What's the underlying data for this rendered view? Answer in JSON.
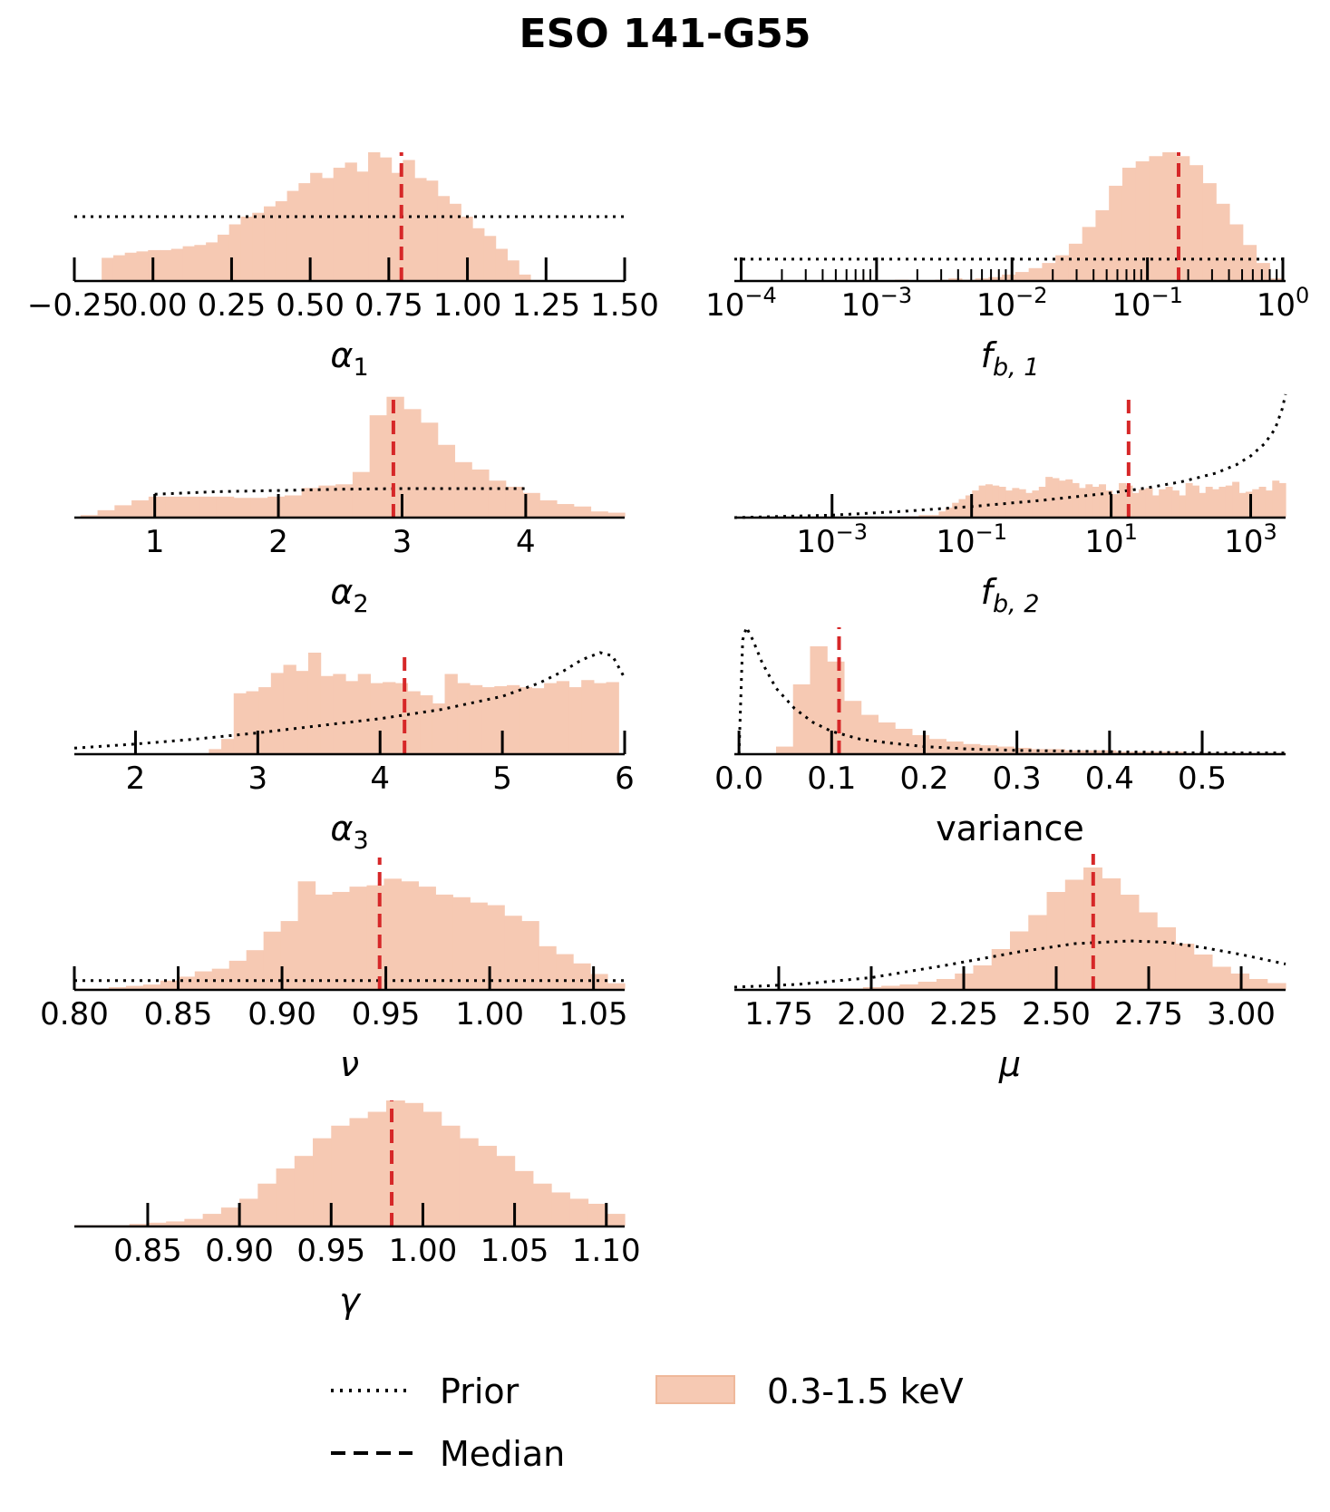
{
  "title": "ESO 141-G55",
  "colors": {
    "hist": "#f6c9b3",
    "median": "#d62728",
    "prior": "#000000",
    "axis": "#000000"
  },
  "legend": {
    "prior_label": "Prior",
    "median_label": "Median",
    "hist_label": "0.3-1.5 keV"
  },
  "chart_data": [
    {
      "type": "histogram",
      "xlabel_sym": "α",
      "xlabel_sub": "1",
      "scale": "linear",
      "xlim": [
        -0.25,
        1.5
      ],
      "ticks": [
        -0.25,
        0.0,
        0.25,
        0.5,
        0.75,
        1.0,
        1.25,
        1.5
      ],
      "tick_labels": [
        "−0.25",
        "0.00",
        "0.25",
        "0.50",
        "0.75",
        "1.00",
        "1.25",
        "1.50"
      ],
      "bins": [
        -0.2,
        1.2
      ],
      "values": [
        0.0,
        0.18,
        0.2,
        0.22,
        0.23,
        0.24,
        0.24,
        0.25,
        0.27,
        0.28,
        0.3,
        0.36,
        0.44,
        0.5,
        0.53,
        0.58,
        0.62,
        0.7,
        0.76,
        0.84,
        0.8,
        0.88,
        0.92,
        0.85,
        1.0,
        0.96,
        0.84,
        0.94,
        0.8,
        0.78,
        0.66,
        0.6,
        0.5,
        0.41,
        0.35,
        0.25,
        0.16,
        0.05
      ],
      "median": 0.79,
      "prior": {
        "kind": "uniform",
        "from": -0.25,
        "to": 1.5,
        "level": 0.5
      }
    },
    {
      "type": "histogram",
      "xlabel_sym": "f",
      "xlabel_sub": "b, 1",
      "scale": "log",
      "xlim": [
        -4.05,
        0.02
      ],
      "ticks": [
        -4,
        -3,
        -2,
        -1,
        0
      ],
      "tick_labels": [
        "−4",
        "−3",
        "−2",
        "−1",
        "0"
      ],
      "tick_base": "10",
      "minor_ticks": true,
      "bins": [
        -4.05,
        0.0
      ],
      "values": [
        0,
        0,
        0,
        0,
        0,
        0,
        0,
        0,
        0,
        0.01,
        0,
        0,
        0.01,
        0,
        0,
        0.01,
        0.02,
        0.01,
        0.02,
        0.03,
        0.05,
        0.07,
        0.1,
        0.14,
        0.2,
        0.29,
        0.42,
        0.55,
        0.74,
        0.88,
        0.93,
        0.97,
        1.0,
        0.97,
        0.9,
        0.76,
        0.6,
        0.44,
        0.28,
        0.14,
        0.02
      ],
      "median": -0.77,
      "prior": {
        "kind": "uniform",
        "from": -4.05,
        "to": 0.0,
        "level": 0.17
      }
    },
    {
      "type": "histogram",
      "xlabel_sym": "α",
      "xlabel_sub": "2",
      "scale": "linear",
      "xlim": [
        0.35,
        4.8
      ],
      "ticks": [
        1,
        2,
        3,
        4
      ],
      "tick_labels": [
        "1",
        "2",
        "3",
        "4"
      ],
      "bins": [
        0.4,
        4.8
      ],
      "values": [
        0.02,
        0.06,
        0.1,
        0.14,
        0.17,
        0.17,
        0.17,
        0.17,
        0.17,
        0.16,
        0.16,
        0.17,
        0.18,
        0.24,
        0.26,
        0.27,
        0.37,
        0.83,
        0.98,
        0.88,
        0.77,
        0.59,
        0.45,
        0.39,
        0.3,
        0.25,
        0.2,
        0.14,
        0.11,
        0.09,
        0.05,
        0.04
      ],
      "median": 2.93,
      "prior": {
        "kind": "curve",
        "xs": [
          1.0,
          1.5,
          2.0,
          2.5,
          3.0,
          3.5,
          4.0
        ],
        "ys": [
          0.19,
          0.21,
          0.22,
          0.23,
          0.235,
          0.235,
          0.235
        ]
      }
    },
    {
      "type": "histogram",
      "xlabel_sym": "f",
      "xlabel_sub": "b, 2",
      "scale": "log",
      "xlim": [
        -4.4,
        3.5
      ],
      "ticks": [
        -3,
        -1,
        1,
        3
      ],
      "tick_labels": [
        "−3",
        "−1",
        "1",
        "3"
      ],
      "tick_base": "10",
      "bins": [
        -3.0,
        3.5
      ],
      "values": [
        0,
        0,
        0,
        0,
        0,
        0,
        0,
        0,
        0,
        0,
        0,
        0.01,
        0.01,
        0.02,
        0.02,
        0.02,
        0.05,
        0.08,
        0.12,
        0.15,
        0.18,
        0.22,
        0.26,
        0.27,
        0.26,
        0.25,
        0.22,
        0.24,
        0.23,
        0.2,
        0.22,
        0.25,
        0.33,
        0.32,
        0.3,
        0.31,
        0.28,
        0.24,
        0.27,
        0.25,
        0.27,
        0.22,
        0.19,
        0.28,
        0.26,
        0.2,
        0.23,
        0.24,
        0.18,
        0.23,
        0.25,
        0.22,
        0.18,
        0.28,
        0.26,
        0.2,
        0.25,
        0.23,
        0.25,
        0.26,
        0.29,
        0.2,
        0.21,
        0.23,
        0.25,
        0.22,
        0.3,
        0.28
      ],
      "median": 1.25,
      "prior": {
        "kind": "curve",
        "xs": [
          -4.4,
          -3.0,
          -2.0,
          -1.0,
          0.0,
          0.5,
          1.0,
          1.5,
          2.0,
          2.5,
          2.8,
          3.0,
          3.2,
          3.35,
          3.45,
          3.5
        ],
        "ys": [
          0.0,
          0.02,
          0.05,
          0.09,
          0.14,
          0.17,
          0.2,
          0.24,
          0.29,
          0.36,
          0.43,
          0.5,
          0.6,
          0.72,
          0.88,
          1.0
        ]
      }
    },
    {
      "type": "histogram",
      "xlabel_sym": "α",
      "xlabel_sub": "3",
      "scale": "linear",
      "xlim": [
        1.5,
        6.0
      ],
      "ticks": [
        2,
        3,
        4,
        5,
        6
      ],
      "tick_labels": [
        "2",
        "3",
        "4",
        "5",
        "6"
      ],
      "bins": [
        2.6,
        5.95
      ],
      "values": [
        0.05,
        0.15,
        0.6,
        0.62,
        0.66,
        0.8,
        0.88,
        0.82,
        1.0,
        0.77,
        0.79,
        0.72,
        0.79,
        0.7,
        0.71,
        0.7,
        0.62,
        0.58,
        0.5,
        0.79,
        0.7,
        0.68,
        0.66,
        0.67,
        0.68,
        0.66,
        0.65,
        0.7,
        0.72,
        0.66,
        0.73,
        0.7,
        0.71
      ],
      "median": 4.2,
      "prior": {
        "kind": "curve",
        "xs": [
          1.5,
          2.0,
          2.5,
          3.0,
          3.5,
          4.0,
          4.5,
          5.0,
          5.3,
          5.5,
          5.65,
          5.8,
          5.9,
          6.0
        ],
        "ys": [
          0.06,
          0.1,
          0.15,
          0.21,
          0.28,
          0.35,
          0.44,
          0.57,
          0.7,
          0.82,
          0.93,
          1.0,
          0.97,
          0.75
        ]
      }
    },
    {
      "type": "histogram",
      "xlabel_text": "variance",
      "scale": "linear",
      "xlim": [
        -0.005,
        0.59
      ],
      "ticks": [
        0.0,
        0.1,
        0.2,
        0.3,
        0.4,
        0.5
      ],
      "tick_labels": [
        "0.0",
        "0.1",
        "0.2",
        "0.3",
        "0.4",
        "0.5"
      ],
      "bins": [
        0.04,
        0.59
      ],
      "values": [
        0.06,
        0.55,
        0.85,
        0.73,
        0.42,
        0.31,
        0.25,
        0.2,
        0.15,
        0.12,
        0.1,
        0.08,
        0.07,
        0.06,
        0.05,
        0.04,
        0.04,
        0.03,
        0.03,
        0.03,
        0.02,
        0.02,
        0.02,
        0.02,
        0.01,
        0.01,
        0.01,
        0.01,
        0.01,
        0.01
      ],
      "median": 0.108,
      "prior": {
        "kind": "curve",
        "xs": [
          0.0,
          0.004,
          0.008,
          0.015,
          0.025,
          0.04,
          0.06,
          0.08,
          0.1,
          0.13,
          0.16,
          0.2,
          0.25,
          0.3,
          0.4,
          0.5,
          0.59
        ],
        "ys": [
          0.0,
          0.9,
          1.0,
          0.9,
          0.72,
          0.52,
          0.36,
          0.25,
          0.18,
          0.12,
          0.09,
          0.06,
          0.04,
          0.03,
          0.02,
          0.01,
          0.01
        ]
      }
    },
    {
      "type": "histogram",
      "xlabel_sym": "ν",
      "scale": "linear",
      "xlim": [
        0.8,
        1.065
      ],
      "ticks": [
        0.8,
        0.85,
        0.9,
        0.95,
        1.0,
        1.05
      ],
      "tick_labels": [
        "0.80",
        "0.85",
        "0.90",
        "0.95",
        "1.00",
        "1.05"
      ],
      "bins": [
        0.8,
        1.065
      ],
      "values": [
        0.01,
        0.01,
        0.02,
        0.03,
        0.04,
        0.07,
        0.1,
        0.14,
        0.16,
        0.22,
        0.3,
        0.44,
        0.52,
        0.82,
        0.72,
        0.74,
        0.78,
        0.79,
        0.84,
        0.82,
        0.78,
        0.72,
        0.7,
        0.66,
        0.64,
        0.56,
        0.52,
        0.33,
        0.27,
        0.2,
        0.12,
        0.05
      ],
      "median": 0.947,
      "prior": {
        "kind": "uniform",
        "from": 0.8,
        "to": 1.065,
        "level": 0.07
      }
    },
    {
      "type": "histogram",
      "xlabel_sym": "μ",
      "scale": "linear",
      "xlim": [
        1.63,
        3.12
      ],
      "ticks": [
        1.75,
        2.0,
        2.25,
        2.5,
        2.75,
        3.0
      ],
      "tick_labels": [
        "1.75",
        "2.00",
        "2.25",
        "2.50",
        "2.75",
        "3.00"
      ],
      "bins": [
        1.63,
        3.12
      ],
      "values": [
        0,
        0,
        0,
        0,
        0.01,
        0.01,
        0.01,
        0.02,
        0.03,
        0.04,
        0.06,
        0.08,
        0.12,
        0.18,
        0.3,
        0.43,
        0.55,
        0.72,
        0.81,
        0.9,
        0.82,
        0.7,
        0.57,
        0.46,
        0.34,
        0.26,
        0.17,
        0.12,
        0.08,
        0.05
      ],
      "median": 2.6,
      "prior": {
        "kind": "curve",
        "xs": [
          1.63,
          1.8,
          2.0,
          2.2,
          2.4,
          2.55,
          2.7,
          2.8,
          2.9,
          3.0,
          3.12
        ],
        "ys": [
          0.02,
          0.04,
          0.09,
          0.18,
          0.28,
          0.34,
          0.36,
          0.35,
          0.31,
          0.26,
          0.19
        ]
      }
    },
    {
      "type": "histogram",
      "xlabel_sym": "γ",
      "scale": "linear",
      "xlim": [
        0.81,
        1.11
      ],
      "ticks": [
        0.85,
        0.9,
        0.95,
        1.0,
        1.05,
        1.1
      ],
      "tick_labels": [
        "0.85",
        "0.90",
        "0.95",
        "1.00",
        "1.05",
        "1.10"
      ],
      "bins": [
        0.81,
        1.11
      ],
      "values": [
        0.01,
        0.01,
        0.01,
        0.02,
        0.03,
        0.04,
        0.06,
        0.1,
        0.15,
        0.22,
        0.34,
        0.46,
        0.56,
        0.7,
        0.8,
        0.86,
        0.91,
        1.0,
        0.98,
        0.91,
        0.8,
        0.7,
        0.64,
        0.56,
        0.44,
        0.34,
        0.27,
        0.22,
        0.18,
        0.1
      ],
      "median": 0.983,
      "prior": {
        "kind": "none"
      }
    }
  ]
}
